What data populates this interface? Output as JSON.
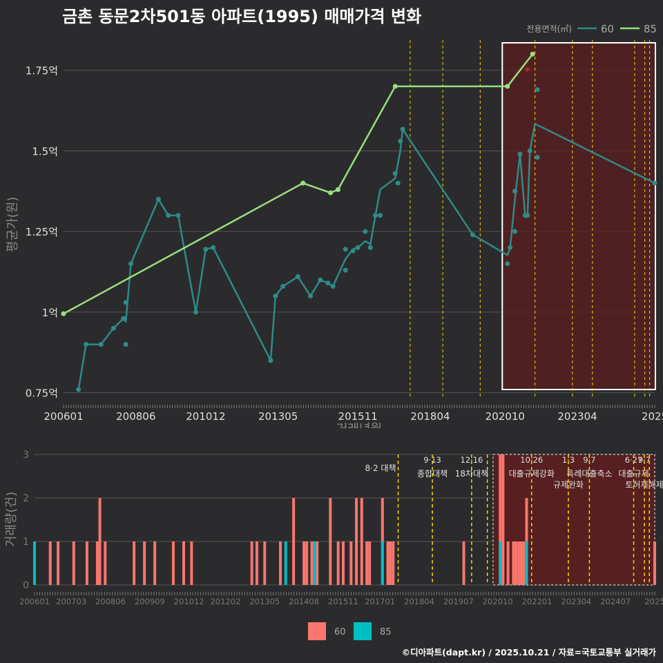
{
  "title": "금촌 동문2차501동 아파트(1995) 매매가격 변화",
  "footer": "©디아파트(dapt.kr) / 2025.10.21 / 자료=국토교통부 실거래가",
  "colors": {
    "bg": "#2b2b2d",
    "grid": "#555555",
    "series60": "#2e8b88",
    "series85": "#98e07f",
    "bar60": "#f8766d",
    "bar85": "#00bfc4",
    "policy": "#ffd700",
    "highlight": "#5c1e1e",
    "marker": "#ff2222"
  },
  "chart_data": [
    {
      "type": "line",
      "title": "금촌 동문2차501동 아파트(1995) 매매가격 변화",
      "xlabel": "거래년월",
      "ylabel": "평균가(원)",
      "xlim": [
        2006.0,
        2025.75
      ],
      "ylim": [
        0.73,
        1.85
      ],
      "x_ticks": [
        {
          "x": 2006.0,
          "label": "200601"
        },
        {
          "x": 2008.4167,
          "label": "200806"
        },
        {
          "x": 2010.75,
          "label": "201012"
        },
        {
          "x": 2013.1667,
          "label": "201305"
        },
        {
          "x": 2015.8333,
          "label": "201511"
        },
        {
          "x": 2018.25,
          "label": "201804"
        },
        {
          "x": 2020.75,
          "label": "202010"
        },
        {
          "x": 2023.1667,
          "label": "202304"
        },
        {
          "x": 2025.75,
          "label": "2025"
        }
      ],
      "y_ticks": [
        {
          "y": 0.75,
          "label": "0.75억"
        },
        {
          "y": 1.0,
          "label": "1억"
        },
        {
          "y": 1.25,
          "label": "1.25억"
        },
        {
          "y": 1.5,
          "label": "1.5억"
        },
        {
          "y": 1.75,
          "label": "1.75억"
        }
      ],
      "legend": {
        "title": "전용면적(㎡)",
        "position": "top-right",
        "items": [
          "60",
          "85"
        ]
      },
      "series": [
        {
          "name": "60",
          "x": [
            2006.5,
            2006.75,
            2007.25,
            2007.67,
            2008.0,
            2008.08,
            2008.25,
            2009.17,
            2009.5,
            2009.83,
            2010.42,
            2010.75,
            2011.0,
            2012.92,
            2013.08,
            2013.33,
            2013.83,
            2014.25,
            2014.58,
            2014.83,
            2015.0,
            2015.42,
            2015.67,
            2015.83,
            2016.08,
            2016.25,
            2016.42,
            2016.58,
            2017.08,
            2017.25,
            2017.33,
            2019.67,
            2020.83,
            2020.92,
            2021.08,
            2021.25,
            2021.42,
            2021.5,
            2021.58,
            2021.75
          ],
          "y": [
            0.76,
            0.9,
            0.9,
            0.95,
            0.98,
            0.97,
            1.15,
            1.35,
            1.3,
            1.3,
            1.0,
            1.195,
            1.2,
            0.85,
            1.05,
            1.08,
            1.11,
            1.05,
            1.1,
            1.09,
            1.08,
            1.165,
            1.195,
            1.2,
            1.22,
            1.21,
            1.3,
            1.38,
            1.415,
            1.5,
            1.567,
            1.24,
            1.177,
            1.2,
            1.35,
            1.49,
            1.3,
            1.3,
            1.5,
            1.584
          ],
          "points": [
            [
              2006.5,
              0.76
            ],
            [
              2006.75,
              0.9
            ],
            [
              2007.25,
              0.9
            ],
            [
              2007.67,
              0.95
            ],
            [
              2008.0,
              0.98
            ],
            [
              2008.08,
              1.03
            ],
            [
              2008.08,
              0.9
            ],
            [
              2008.25,
              1.15
            ],
            [
              2009.17,
              1.35
            ],
            [
              2009.5,
              1.3
            ],
            [
              2009.83,
              1.3
            ],
            [
              2010.42,
              1.0
            ],
            [
              2010.75,
              1.195
            ],
            [
              2011.0,
              1.2
            ],
            [
              2012.92,
              0.85
            ],
            [
              2013.08,
              1.05
            ],
            [
              2013.33,
              1.08
            ],
            [
              2013.83,
              1.11
            ],
            [
              2014.25,
              1.05
            ],
            [
              2014.58,
              1.1
            ],
            [
              2014.83,
              1.09
            ],
            [
              2015.0,
              1.08
            ],
            [
              2015.42,
              1.195
            ],
            [
              2015.42,
              1.13
            ],
            [
              2015.67,
              1.19
            ],
            [
              2015.83,
              1.2
            ],
            [
              2016.08,
              1.25
            ],
            [
              2016.25,
              1.2
            ],
            [
              2016.42,
              1.3
            ],
            [
              2016.58,
              1.3
            ],
            [
              2017.08,
              1.43
            ],
            [
              2017.17,
              1.4
            ],
            [
              2017.25,
              1.53
            ],
            [
              2017.33,
              1.567
            ],
            [
              2019.67,
              1.24
            ],
            [
              2020.83,
              1.15
            ],
            [
              2020.92,
              1.2
            ],
            [
              2021.08,
              1.25
            ],
            [
              2021.08,
              1.375
            ],
            [
              2021.25,
              1.49
            ],
            [
              2021.42,
              1.3
            ],
            [
              2021.5,
              1.3
            ],
            [
              2021.58,
              1.5
            ],
            [
              2021.83,
              1.69
            ],
            [
              2021.83,
              1.48
            ],
            [
              2025.75,
              1.4
            ]
          ],
          "trend_extension": [
            [
              2021.75,
              1.584
            ],
            [
              2025.75,
              1.4
            ]
          ]
        },
        {
          "name": "85",
          "x": [
            2006.0,
            2014.0,
            2014.92,
            2015.17,
            2017.08,
            2020.83,
            2021.67
          ],
          "y": [
            0.995,
            1.4,
            1.37,
            1.38,
            1.7,
            1.7,
            1.8
          ],
          "points": [
            [
              2006.0,
              0.995
            ],
            [
              2014.0,
              1.4
            ],
            [
              2014.92,
              1.37
            ],
            [
              2015.17,
              1.38
            ],
            [
              2017.08,
              1.7
            ],
            [
              2020.83,
              1.7
            ],
            [
              2021.67,
              1.8
            ]
          ]
        }
      ],
      "annotations": [
        {
          "type": "marker",
          "symbol": "*",
          "x": 2021.5,
          "y": 1.75
        },
        {
          "type": "highlight",
          "x_range": [
            2020.75,
            2025.75
          ],
          "y_range": [
            0.76,
            1.835
          ]
        }
      ],
      "policy_lines_x": [
        2017.58,
        2018.67,
        2019.92,
        2021.75,
        2023.0,
        2023.67,
        2025.08,
        2025.42,
        2025.58
      ]
    },
    {
      "type": "bar",
      "xlabel": "",
      "ylabel": "거래량(건)",
      "xlim": [
        2006.0,
        2025.75
      ],
      "ylim": [
        0,
        3
      ],
      "y_ticks": [
        0,
        1,
        2,
        3
      ],
      "x_ticks": [
        {
          "x": 2006.0,
          "label": "200601"
        },
        {
          "x": 2007.17,
          "label": "200703"
        },
        {
          "x": 2008.42,
          "label": "200806"
        },
        {
          "x": 2009.67,
          "label": "200909"
        },
        {
          "x": 2010.92,
          "label": "201012"
        },
        {
          "x": 2012.08,
          "label": "201202"
        },
        {
          "x": 2013.33,
          "label": "201305"
        },
        {
          "x": 2014.58,
          "label": "201408"
        },
        {
          "x": 2015.83,
          "label": "201511"
        },
        {
          "x": 2017.0,
          "label": "201701"
        },
        {
          "x": 2018.25,
          "label": "201804"
        },
        {
          "x": 2019.5,
          "label": "201907"
        },
        {
          "x": 2020.75,
          "label": "202010"
        },
        {
          "x": 2022.0,
          "label": "202201"
        },
        {
          "x": 2023.25,
          "label": "202304"
        },
        {
          "x": 2024.5,
          "label": "202407"
        },
        {
          "x": 2025.75,
          "label": "2025"
        }
      ],
      "legend": {
        "position": "bottom",
        "items": [
          "60",
          "85"
        ]
      },
      "series": [
        {
          "name": "60",
          "x": [
            2006.5,
            2006.75,
            2007.25,
            2007.67,
            2008.0,
            2008.08,
            2008.25,
            2009.17,
            2009.5,
            2009.83,
            2010.42,
            2010.75,
            2011.0,
            2012.92,
            2013.08,
            2013.33,
            2013.83,
            2014.25,
            2014.58,
            2014.67,
            2014.83,
            2015.0,
            2015.42,
            2015.67,
            2015.83,
            2016.08,
            2016.25,
            2016.42,
            2016.58,
            2016.67,
            2017.08,
            2017.25,
            2017.33,
            2017.42,
            2019.67,
            2020.83,
            2020.92,
            2021.08,
            2021.25,
            2021.33,
            2021.42,
            2021.5,
            2021.58,
            2021.67,
            2025.75
          ],
          "values": [
            1,
            1,
            1,
            1,
            1,
            2,
            1,
            1,
            1,
            1,
            1,
            1,
            1,
            1,
            1,
            1,
            1,
            2,
            1,
            1,
            1,
            1,
            2,
            1,
            1,
            1,
            2,
            2,
            1,
            1,
            2,
            1,
            1,
            1,
            1,
            3,
            3,
            1,
            1,
            1,
            1,
            1,
            1,
            2,
            1
          ]
        },
        {
          "name": "85",
          "x": [
            2006.0,
            2014.0,
            2014.92,
            2017.08,
            2020.83,
            2021.67
          ],
          "values": [
            1,
            1,
            1,
            1,
            1,
            1
          ]
        }
      ],
      "annotations": [
        {
          "type": "highlight",
          "x_range": [
            2020.6,
            2025.75
          ],
          "y_range": [
            0,
            3
          ]
        }
      ],
      "policy_lines": [
        {
          "x": 2017.58,
          "date": "8·2",
          "label": "대책",
          "text": "8·2 대책"
        },
        {
          "x": 2018.67,
          "date": "9·13",
          "label": "종합대책"
        },
        {
          "x": 2019.92,
          "date": "12·16",
          "label": "18차대책"
        },
        {
          "x": 2020.42,
          "date": "",
          "label": ""
        },
        {
          "x": 2021.83,
          "date": "10·26",
          "label": "대출규제강화"
        },
        {
          "x": 2023.0,
          "date": "1·3",
          "label": "규제완화"
        },
        {
          "x": 2023.67,
          "date": "9·7",
          "label": "특례대출축소"
        },
        {
          "x": 2025.08,
          "date": "6·27",
          "label": "대출규제"
        },
        {
          "x": 2025.42,
          "date": "9·7",
          "label": "토허제해제"
        },
        {
          "x": 2025.58,
          "date": "",
          "label": ""
        }
      ]
    }
  ]
}
